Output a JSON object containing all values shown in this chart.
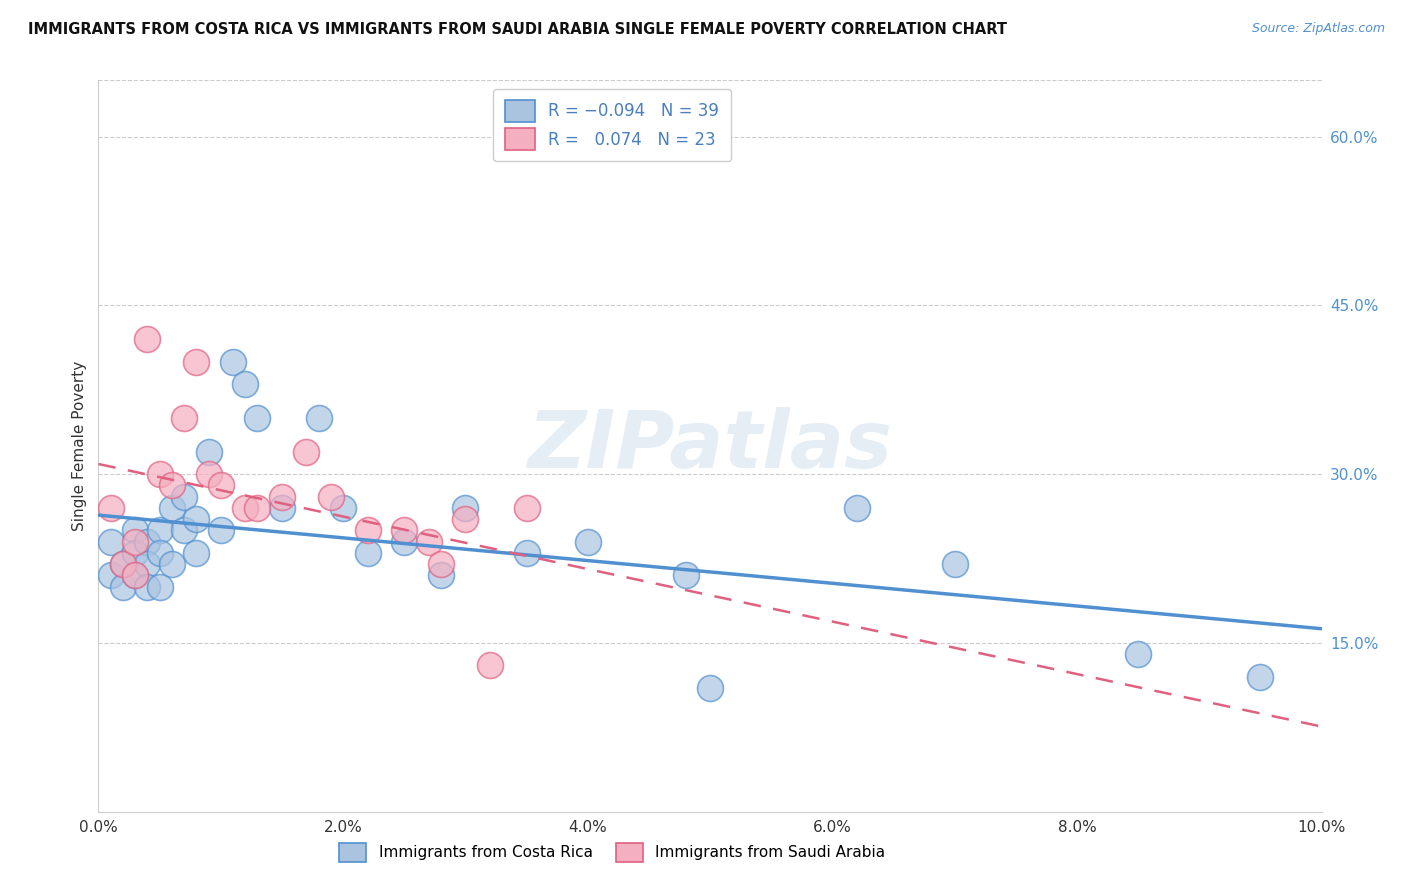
{
  "title": "IMMIGRANTS FROM COSTA RICA VS IMMIGRANTS FROM SAUDI ARABIA SINGLE FEMALE POVERTY CORRELATION CHART",
  "source": "Source: ZipAtlas.com",
  "ylabel": "Single Female Poverty",
  "xlim": [
    0.0,
    0.1
  ],
  "ylim": [
    0.0,
    0.65
  ],
  "xtick_vals": [
    0.0,
    0.02,
    0.04,
    0.06,
    0.08,
    0.1
  ],
  "xticklabels": [
    "0.0%",
    "2.0%",
    "4.0%",
    "6.0%",
    "8.0%",
    "10.0%"
  ],
  "ytick_right_labels": [
    "15.0%",
    "30.0%",
    "45.0%",
    "60.0%"
  ],
  "ytick_right_values": [
    0.15,
    0.3,
    0.45,
    0.6
  ],
  "watermark": "ZIPatlas",
  "color_blue": "#aac4e0",
  "color_pink": "#f4afc0",
  "line_blue": "#5090d0",
  "line_pink": "#e06080",
  "costa_rica_x": [
    0.001,
    0.001,
    0.002,
    0.002,
    0.003,
    0.003,
    0.003,
    0.004,
    0.004,
    0.004,
    0.005,
    0.005,
    0.005,
    0.006,
    0.006,
    0.007,
    0.007,
    0.008,
    0.008,
    0.009,
    0.01,
    0.011,
    0.012,
    0.013,
    0.015,
    0.018,
    0.02,
    0.022,
    0.025,
    0.028,
    0.03,
    0.035,
    0.04,
    0.048,
    0.05,
    0.062,
    0.07,
    0.085,
    0.095
  ],
  "costa_rica_y": [
    0.24,
    0.21,
    0.22,
    0.2,
    0.25,
    0.23,
    0.21,
    0.24,
    0.22,
    0.2,
    0.25,
    0.23,
    0.2,
    0.27,
    0.22,
    0.28,
    0.25,
    0.26,
    0.23,
    0.32,
    0.25,
    0.4,
    0.38,
    0.35,
    0.27,
    0.35,
    0.27,
    0.23,
    0.24,
    0.21,
    0.27,
    0.23,
    0.24,
    0.21,
    0.11,
    0.27,
    0.22,
    0.14,
    0.12
  ],
  "saudi_arabia_x": [
    0.001,
    0.002,
    0.003,
    0.003,
    0.004,
    0.005,
    0.006,
    0.007,
    0.008,
    0.009,
    0.01,
    0.012,
    0.013,
    0.015,
    0.017,
    0.019,
    0.022,
    0.025,
    0.027,
    0.028,
    0.03,
    0.032,
    0.035
  ],
  "saudi_arabia_y": [
    0.27,
    0.22,
    0.24,
    0.21,
    0.42,
    0.3,
    0.29,
    0.35,
    0.4,
    0.3,
    0.29,
    0.27,
    0.27,
    0.28,
    0.32,
    0.28,
    0.25,
    0.25,
    0.24,
    0.22,
    0.26,
    0.13,
    0.27
  ]
}
